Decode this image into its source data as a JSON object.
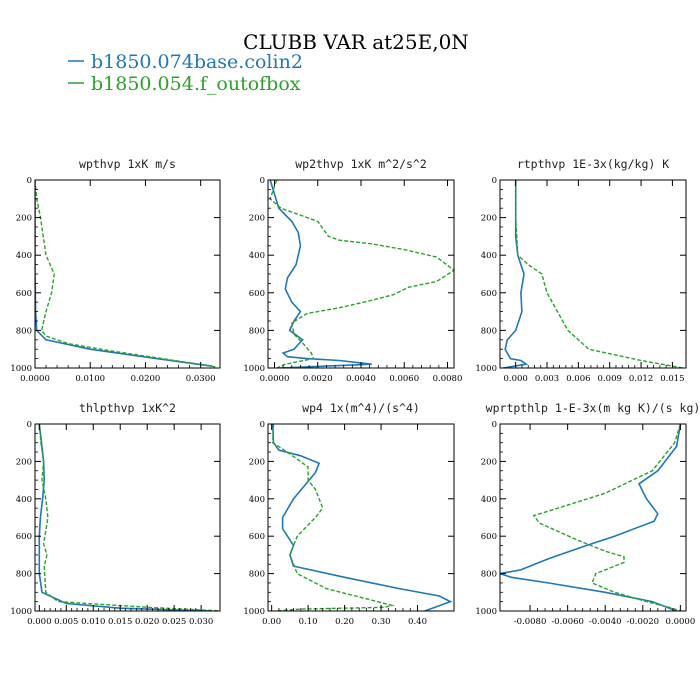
{
  "figure": {
    "title": "CLUBB VAR at25E,0N",
    "legend": [
      {
        "label": "b1850.074base.colin2",
        "color": "#1f77b4"
      },
      {
        "label": "b1850.054.f_outofbox",
        "color": "#2ca02c"
      }
    ]
  },
  "chart_data": [
    {
      "type": "line",
      "title": "wpthvp  1xK m/s",
      "xlim": [
        0,
        0.0335
      ],
      "ylim": [
        0,
        1000
      ],
      "y_inverted": true,
      "xticks": [
        0,
        0.01,
        0.02,
        0.03
      ],
      "xtick_labels": [
        "0.0000",
        "0.0100",
        "0.0200",
        "0.0300"
      ],
      "yticks": [
        0,
        200,
        400,
        600,
        800,
        1000
      ],
      "ytick_labels": [
        "0",
        "200",
        "400",
        "600",
        "800",
        "1000"
      ],
      "series": [
        {
          "name": "b1850.074base.colin2",
          "x": [
            0,
            0,
            0,
            0,
            0.0001,
            0.0003,
            0.002,
            0.01,
            0.022,
            0.032
          ],
          "y": [
            0,
            100,
            300,
            500,
            700,
            800,
            850,
            900,
            950,
            990
          ]
        },
        {
          "name": "b1850.054.f_outofbox",
          "x": [
            0,
            0.0003,
            0.001,
            0.002,
            0.0035,
            0.003,
            0.002,
            0.0012,
            0.002,
            0.006,
            0.014,
            0.023,
            0.033
          ],
          "y": [
            0,
            100,
            200,
            400,
            500,
            600,
            700,
            800,
            830,
            870,
            910,
            950,
            995
          ]
        }
      ]
    },
    {
      "type": "line",
      "title": "wp2thvp  1xK m^2/s^2",
      "xlim": [
        -0.0003,
        0.0083
      ],
      "ylim": [
        0,
        1000
      ],
      "y_inverted": true,
      "xticks": [
        0,
        0.002,
        0.004,
        0.006,
        0.008
      ],
      "xtick_labels": [
        "0.0000",
        "0.0020",
        "0.0040",
        "0.0060",
        "0.0080"
      ],
      "yticks": [
        0,
        200,
        400,
        600,
        800,
        1000
      ],
      "ytick_labels": [
        "0",
        "200",
        "400",
        "600",
        "800",
        "1000"
      ],
      "series": [
        {
          "name": "b1850.074base.colin2",
          "x": [
            -0.0002,
            0.0002,
            0.0008,
            0.0011,
            0.0012,
            0.001,
            0.0006,
            0.0005,
            0.0008,
            0.0012,
            0.0009,
            0.0007,
            0.0013,
            0.0009,
            0.0004,
            0.0006,
            0.0015,
            0.003,
            0.0045,
            0.0002
          ],
          "y": [
            0,
            150,
            220,
            280,
            350,
            450,
            520,
            580,
            650,
            700,
            750,
            800,
            850,
            900,
            920,
            940,
            950,
            960,
            980,
            1000
          ]
        },
        {
          "name": "b1850.054.f_outofbox",
          "x": [
            0.0001,
            -0.0002,
            0.0003,
            0.002,
            0.0025,
            0.003,
            0.0045,
            0.006,
            0.0075,
            0.0083,
            0.0075,
            0.0062,
            0.0055,
            0.0045,
            0.003,
            0.0015,
            0.0008,
            0.0009,
            0.0014,
            0.0017,
            0.0018,
            0.0005,
            0.0001
          ],
          "y": [
            0,
            100,
            150,
            220,
            300,
            320,
            340,
            370,
            410,
            480,
            540,
            570,
            610,
            640,
            680,
            710,
            760,
            820,
            880,
            920,
            950,
            980,
            1000
          ]
        }
      ]
    },
    {
      "type": "line",
      "title": "rtpthvp  1E-3x(kg/kg) K",
      "xlim": [
        -0.0015,
        0.0163
      ],
      "ylim": [
        0,
        1000
      ],
      "y_inverted": true,
      "xticks": [
        0,
        0.003,
        0.006,
        0.009,
        0.012,
        0.015
      ],
      "xtick_labels": [
        "0.000",
        "0.003",
        "0.006",
        "0.009",
        "0.012",
        "0.015"
      ],
      "yticks": [
        0,
        200,
        400,
        600,
        800,
        1000
      ],
      "ytick_labels": [
        "0",
        "200",
        "400",
        "600",
        "800",
        "1000"
      ],
      "series": [
        {
          "name": "b1850.074base.colin2",
          "x": [
            0,
            0,
            0,
            0.0002,
            0.0005,
            0.0008,
            0.0005,
            0.0006,
            0,
            -0.0008,
            -0.001,
            -0.0005,
            0.0005,
            0.001,
            -0.0012
          ],
          "y": [
            0,
            200,
            300,
            400,
            450,
            500,
            600,
            700,
            800,
            850,
            900,
            950,
            960,
            980,
            1000
          ]
        },
        {
          "name": "b1850.054.f_outofbox",
          "x": [
            0,
            0,
            0.0002,
            0.0012,
            0.0025,
            0.003,
            0.004,
            0.005,
            0.007,
            0.012,
            0.016
          ],
          "y": [
            0,
            200,
            400,
            450,
            500,
            600,
            700,
            800,
            900,
            960,
            1000
          ]
        }
      ]
    },
    {
      "type": "line",
      "title": "thlpthvp  1xK^2",
      "xlim": [
        -0.0008,
        0.0335
      ],
      "ylim": [
        0,
        1000
      ],
      "y_inverted": true,
      "xticks": [
        0,
        0.005,
        0.01,
        0.015,
        0.02,
        0.025,
        0.03
      ],
      "xtick_labels": [
        "0.000",
        "0.005",
        "0.010",
        "0.015",
        "0.020",
        "0.025",
        "0.030"
      ],
      "yticks": [
        0,
        200,
        400,
        600,
        800,
        1000
      ],
      "ytick_labels": [
        "0",
        "200",
        "400",
        "600",
        "800",
        "1000"
      ],
      "series": [
        {
          "name": "b1850.074base.colin2",
          "x": [
            0,
            0.0004,
            0.0008,
            0.0009,
            0.0006,
            0.0002,
            0,
            0,
            0.0005,
            0.005,
            0.015,
            0.032
          ],
          "y": [
            0,
            100,
            200,
            300,
            400,
            500,
            600,
            800,
            900,
            960,
            985,
            1000
          ]
        },
        {
          "name": "b1850.054.f_outofbox",
          "x": [
            0,
            0.0003,
            0.0008,
            0.0005,
            0.0012,
            0.0016,
            0.0012,
            0.0008,
            0.0014,
            0.0009,
            0.0012,
            0.0035,
            0.02,
            0.034
          ],
          "y": [
            0,
            100,
            200,
            300,
            400,
            500,
            570,
            640,
            700,
            760,
            900,
            950,
            980,
            1000
          ]
        }
      ]
    },
    {
      "type": "line",
      "title": "wp4  1x(m^4)/(s^4)",
      "xlim": [
        -0.01,
        0.5
      ],
      "ylim": [
        0,
        1000
      ],
      "y_inverted": true,
      "xticks": [
        0,
        0.1,
        0.2,
        0.3,
        0.4
      ],
      "xtick_labels": [
        "0.00",
        "0.10",
        "0.20",
        "0.30",
        "0.40"
      ],
      "yticks": [
        0,
        200,
        400,
        600,
        800,
        1000
      ],
      "ytick_labels": [
        "0",
        "200",
        "400",
        "600",
        "800",
        "1000"
      ],
      "series": [
        {
          "name": "b1850.074base.colin2",
          "x": [
            0.003,
            0.005,
            0.02,
            0.08,
            0.13,
            0.12,
            0.06,
            0.03,
            0.03,
            0.06,
            0.05,
            0.06,
            0.2,
            0.35,
            0.46,
            0.49,
            0.42
          ],
          "y": [
            0,
            100,
            140,
            170,
            210,
            260,
            400,
            500,
            560,
            650,
            700,
            760,
            820,
            880,
            920,
            950,
            1000
          ]
        },
        {
          "name": "b1850.054.f_outofbox",
          "x": [
            0.005,
            0.003,
            0.05,
            0.1,
            0.1,
            0.12,
            0.14,
            0.12,
            0.07,
            0.05,
            0.07,
            0.15,
            0.25,
            0.33,
            0.31,
            0.08,
            0.01
          ],
          "y": [
            0,
            100,
            160,
            230,
            300,
            350,
            450,
            500,
            600,
            700,
            800,
            880,
            930,
            970,
            980,
            990,
            1000
          ]
        }
      ]
    },
    {
      "type": "line",
      "title": "wprtpthlp  1-E-3x(m kg K)/(s kg)",
      "xlim": [
        -0.0096,
        0.0003
      ],
      "ylim": [
        0,
        1000
      ],
      "y_inverted": true,
      "xticks": [
        -0.008,
        -0.006,
        -0.004,
        -0.002,
        0
      ],
      "xtick_labels": [
        "-0.0080",
        "-0.0060",
        "-0.0040",
        "-0.0020",
        "0.0000"
      ],
      "yticks": [
        0,
        200,
        400,
        600,
        800,
        1000
      ],
      "ytick_labels": [
        "0",
        "200",
        "400",
        "600",
        "800",
        "1000"
      ],
      "series": [
        {
          "name": "b1850.074base.colin2",
          "x": [
            0,
            -0.0002,
            -0.0012,
            -0.0022,
            -0.0018,
            -0.0012,
            -0.0014,
            -0.0035,
            -0.005,
            -0.007,
            -0.0085,
            -0.0096,
            -0.009,
            -0.007,
            -0.004,
            -0.0015,
            -0.0002
          ],
          "y": [
            0,
            120,
            250,
            320,
            400,
            480,
            520,
            600,
            650,
            720,
            780,
            800,
            820,
            850,
            900,
            950,
            1000
          ]
        },
        {
          "name": "b1850.054.f_outofbox",
          "x": [
            0,
            -0.0003,
            -0.0015,
            -0.004,
            -0.0065,
            -0.0078,
            -0.0075,
            -0.0055,
            -0.004,
            -0.003,
            -0.003,
            -0.0045,
            -0.0047,
            -0.0035,
            -0.0018,
            -0.0006,
            0
          ],
          "y": [
            0,
            100,
            250,
            370,
            450,
            490,
            530,
            620,
            680,
            710,
            740,
            800,
            850,
            900,
            950,
            980,
            1000
          ]
        }
      ]
    }
  ]
}
